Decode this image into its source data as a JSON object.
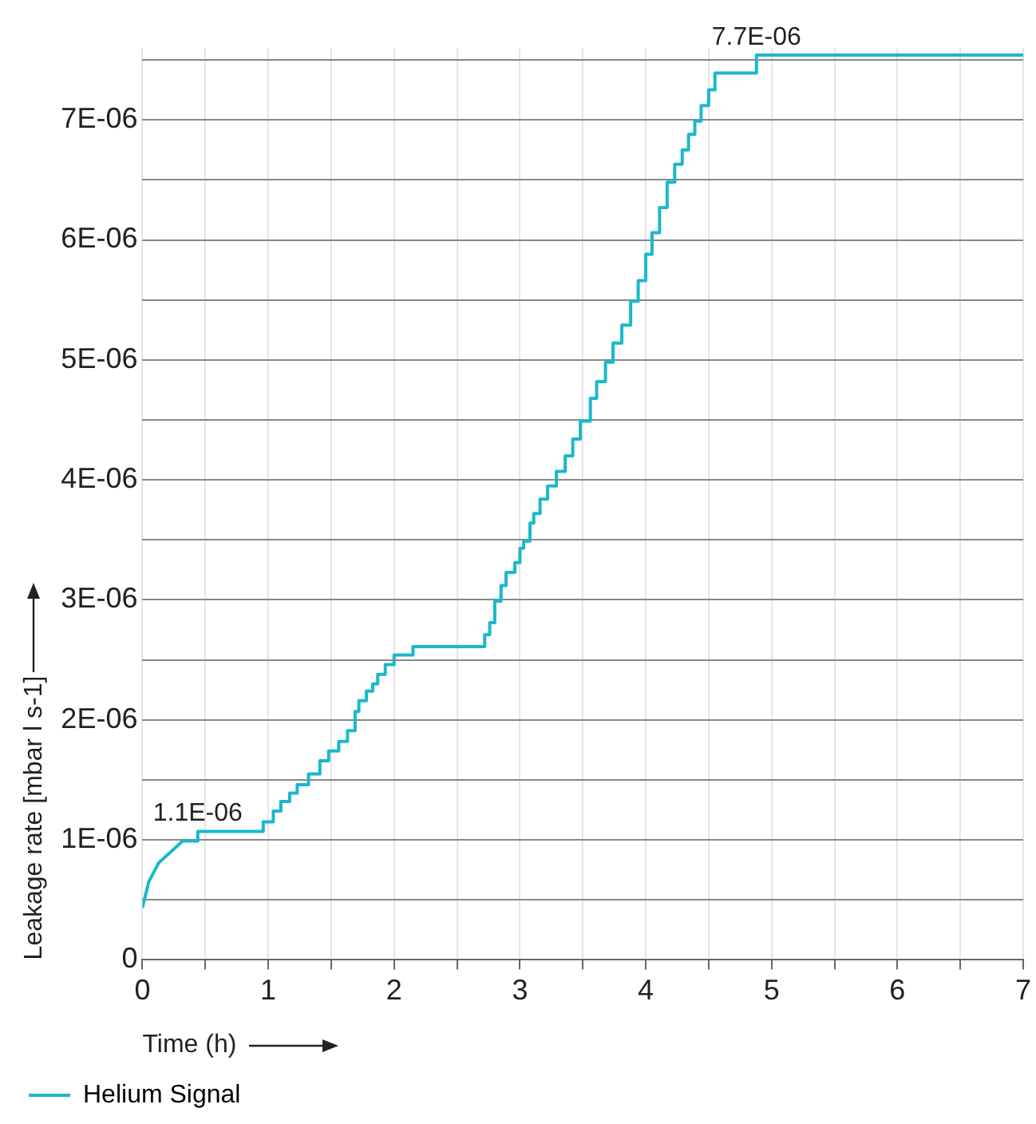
{
  "chart_data": {
    "type": "line",
    "xlabel": "Time (h)",
    "ylabel": "Leakage rate [mbar l s-1]",
    "xlim": [
      0,
      7
    ],
    "ylim": [
      0,
      7.6e-06
    ],
    "xticks": [
      0,
      {
        "value": 0.5,
        "label": null
      },
      1,
      {
        "value": 1.5,
        "label": null
      },
      2,
      {
        "value": 2.5,
        "label": null
      },
      3,
      {
        "value": 3.5,
        "label": null
      },
      4,
      {
        "value": 4.5,
        "label": null
      },
      5,
      {
        "value": 5.5,
        "label": null
      },
      6,
      {
        "value": 6.5,
        "label": null
      },
      7
    ],
    "yticks": [
      0,
      {
        "value": 5e-07,
        "label": null
      },
      {
        "value": 1e-06,
        "label": "1E-06"
      },
      {
        "value": 1.5e-06,
        "label": null
      },
      {
        "value": 2e-06,
        "label": "2E-06"
      },
      {
        "value": 2.5e-06,
        "label": null
      },
      {
        "value": 3e-06,
        "label": "3E-06"
      },
      {
        "value": 3.5e-06,
        "label": null
      },
      {
        "value": 4e-06,
        "label": "4E-06"
      },
      {
        "value": 4.5e-06,
        "label": null
      },
      {
        "value": 5e-06,
        "label": "5E-06"
      },
      {
        "value": 5.5e-06,
        "label": null
      },
      {
        "value": 6e-06,
        "label": "6E-06"
      },
      {
        "value": 6.5e-06,
        "label": null
      },
      {
        "value": 7e-06,
        "label": "7E-06"
      },
      {
        "value": 7.5e-06,
        "label": null
      }
    ],
    "grid": true,
    "legend": "bottom",
    "marker": "none",
    "line_style": "solid",
    "annotations": [
      {
        "text": "1.1E-06",
        "x": 0.44,
        "y": 1.07e-06
      },
      {
        "text": "7.7E-06",
        "x": 4.88,
        "y": 7.54e-06
      }
    ],
    "series": [
      {
        "name": "Helium Signal",
        "color": "#1ab8cc",
        "x": [
          0,
          0.05,
          0.13,
          0.32,
          0.44,
          0.44,
          0.96,
          0.96,
          1.04,
          1.04,
          1.1,
          1.1,
          1.17,
          1.17,
          1.23,
          1.23,
          1.32,
          1.32,
          1.41,
          1.41,
          1.48,
          1.48,
          1.56,
          1.56,
          1.63,
          1.63,
          1.69,
          1.69,
          1.72,
          1.72,
          1.78,
          1.78,
          1.83,
          1.83,
          1.87,
          1.87,
          1.93,
          1.93,
          2.0,
          2.0,
          2.15,
          2.15,
          2.72,
          2.72,
          2.76,
          2.76,
          2.8,
          2.8,
          2.85,
          2.85,
          2.89,
          2.89,
          2.96,
          2.96,
          3.0,
          3.0,
          3.03,
          3.03,
          3.08,
          3.08,
          3.11,
          3.11,
          3.16,
          3.16,
          3.22,
          3.22,
          3.29,
          3.29,
          3.36,
          3.36,
          3.42,
          3.42,
          3.48,
          3.48,
          3.56,
          3.56,
          3.61,
          3.61,
          3.68,
          3.68,
          3.74,
          3.74,
          3.81,
          3.81,
          3.88,
          3.88,
          3.94,
          3.94,
          4.0,
          4.0,
          4.05,
          4.05,
          4.11,
          4.11,
          4.17,
          4.17,
          4.23,
          4.23,
          4.29,
          4.29,
          4.34,
          4.34,
          4.39,
          4.39,
          4.44,
          4.44,
          4.5,
          4.5,
          4.55,
          4.55,
          4.88,
          4.88,
          7
        ],
        "values": [
          4.35e-07,
          6.5e-07,
          8.1e-07,
          9.9e-07,
          9.9e-07,
          1.07e-06,
          1.07e-06,
          1.15e-06,
          1.15e-06,
          1.24e-06,
          1.24e-06,
          1.32e-06,
          1.32e-06,
          1.39e-06,
          1.39e-06,
          1.46e-06,
          1.46e-06,
          1.55e-06,
          1.55e-06,
          1.66e-06,
          1.66e-06,
          1.74e-06,
          1.74e-06,
          1.82e-06,
          1.82e-06,
          1.91e-06,
          1.91e-06,
          2.07e-06,
          2.07e-06,
          2.16e-06,
          2.16e-06,
          2.24e-06,
          2.24e-06,
          2.3e-06,
          2.3e-06,
          2.38e-06,
          2.38e-06,
          2.46e-06,
          2.46e-06,
          2.54e-06,
          2.54e-06,
          2.61e-06,
          2.61e-06,
          2.71e-06,
          2.71e-06,
          2.81e-06,
          2.81e-06,
          2.99e-06,
          2.99e-06,
          3.12e-06,
          3.12e-06,
          3.23e-06,
          3.23e-06,
          3.31e-06,
          3.31e-06,
          3.43e-06,
          3.43e-06,
          3.49e-06,
          3.49e-06,
          3.64e-06,
          3.64e-06,
          3.72e-06,
          3.72e-06,
          3.84e-06,
          3.84e-06,
          3.95e-06,
          3.95e-06,
          4.07e-06,
          4.07e-06,
          4.2e-06,
          4.2e-06,
          4.34e-06,
          4.34e-06,
          4.49e-06,
          4.49e-06,
          4.68e-06,
          4.68e-06,
          4.82e-06,
          4.82e-06,
          4.98e-06,
          4.98e-06,
          5.14e-06,
          5.14e-06,
          5.29e-06,
          5.29e-06,
          5.49e-06,
          5.49e-06,
          5.66e-06,
          5.66e-06,
          5.88e-06,
          5.88e-06,
          6.06e-06,
          6.06e-06,
          6.27e-06,
          6.27e-06,
          6.48e-06,
          6.48e-06,
          6.63e-06,
          6.63e-06,
          6.75e-06,
          6.75e-06,
          6.88e-06,
          6.88e-06,
          6.99e-06,
          6.99e-06,
          7.12e-06,
          7.12e-06,
          7.25e-06,
          7.25e-06,
          7.39e-06,
          7.39e-06,
          7.54e-06,
          7.54e-06
        ]
      }
    ]
  }
}
